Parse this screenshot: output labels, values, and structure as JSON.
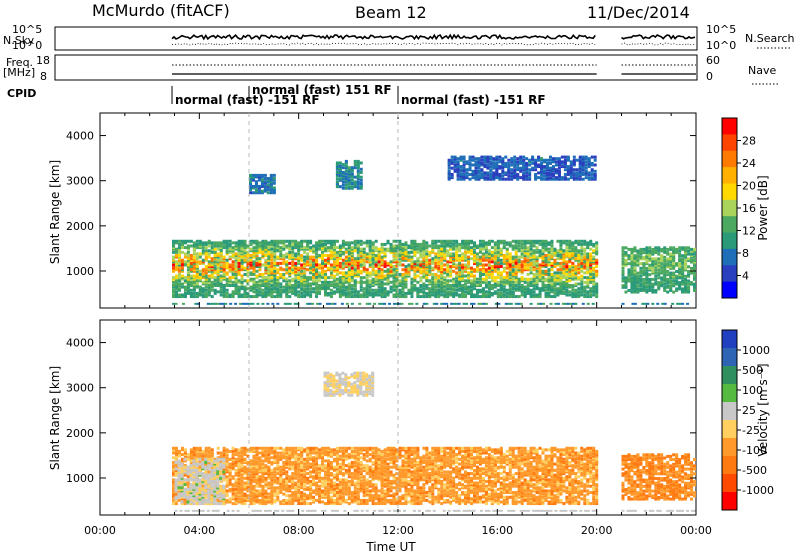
{
  "header": {
    "station": "McMurdo (fitACF)",
    "beam": "Beam 12",
    "date": "11/Dec/2014"
  },
  "strip": {
    "nsky_label": "N.Sky",
    "nsky_ticks": [
      "10^5",
      "10^0"
    ],
    "nsearch_label": "N.Search",
    "nsearch_ticks": [
      "10^5",
      "10^0"
    ],
    "freq_label": "Freq.",
    "freq_unit": "[MHz]",
    "freq_ticks": [
      "18",
      "8"
    ],
    "nave_label": "Nave",
    "nave_ticks": [
      "60",
      "0"
    ],
    "cpid_label": "CPID",
    "cpid_modes": [
      {
        "start": 2.9,
        "text": "normal (fast) -151 RF"
      },
      {
        "start": 6.0,
        "text": "normal (fast) 151 RF"
      },
      {
        "start": 12.0,
        "text": "normal (fast) -151 RF"
      }
    ]
  },
  "legend_power": {
    "label": "Power [dB]",
    "ticks": [
      "28",
      "24",
      "20",
      "16",
      "12",
      "8",
      "4"
    ],
    "colors": [
      "#ff0000",
      "#ff4400",
      "#ff7a00",
      "#ffb000",
      "#ffd800",
      "#a9d35a",
      "#4aa860",
      "#2a9a78",
      "#1f6fb8",
      "#2a3fbf",
      "#0000ff"
    ]
  },
  "legend_velocity": {
    "label": "Velocity [m s⁻¹]",
    "ticks": [
      "1000",
      "500",
      "100",
      "25",
      "-25",
      "-100",
      "-500",
      "-1000"
    ],
    "colors": [
      "#2040c0",
      "#2f64b4",
      "#2f8f5f",
      "#55bb40",
      "#c8c8c8",
      "#ffd060",
      "#ff9a2a",
      "#ff7a10",
      "#ff4a00",
      "#ff0000"
    ]
  },
  "chart_data": [
    {
      "type": "heatmap",
      "title": "",
      "xlabel": "",
      "ylabel": "Slant Range [km]",
      "xlim": [
        0,
        24
      ],
      "ylim": [
        180,
        4500
      ],
      "yticks": [
        1000,
        2000,
        3000,
        4000
      ],
      "colorbar_label": "Power [dB]",
      "colorbar_range": [
        0,
        30
      ],
      "data_gaps_ut": [
        [
          0,
          2.9
        ],
        [
          20.0,
          21.0
        ]
      ],
      "echo_regions": [
        {
          "ut_start": 2.9,
          "ut_end": 20.0,
          "range_km": [
            400,
            1650
          ],
          "typical_power_db": 14,
          "max_power_db": 28
        },
        {
          "ut_start": 6.0,
          "ut_end": 7.0,
          "range_km": [
            2700,
            3100
          ],
          "typical_power_db": 8
        },
        {
          "ut_start": 9.5,
          "ut_end": 10.5,
          "range_km": [
            2800,
            3400
          ],
          "typical_power_db": 10
        },
        {
          "ut_start": 14.0,
          "ut_end": 20.0,
          "range_km": [
            3000,
            3500
          ],
          "typical_power_db": 6
        },
        {
          "ut_start": 21.0,
          "ut_end": 24.0,
          "range_km": [
            500,
            1500
          ],
          "typical_power_db": 14
        }
      ]
    },
    {
      "type": "heatmap",
      "title": "",
      "xlabel": "Time UT",
      "ylabel": "Slant Range [km]",
      "xlim": [
        0,
        24
      ],
      "ylim": [
        180,
        4500
      ],
      "xticks": [
        "00:00",
        "04:00",
        "08:00",
        "12:00",
        "16:00",
        "20:00",
        "00:00"
      ],
      "yticks": [
        1000,
        2000,
        3000,
        4000
      ],
      "colorbar_label": "Velocity [m s⁻¹]",
      "colorbar_range": [
        -1000,
        1000
      ],
      "data_gaps_ut": [
        [
          0,
          2.9
        ],
        [
          20.0,
          21.0
        ]
      ],
      "echo_regions": [
        {
          "ut_start": 2.9,
          "ut_end": 20.0,
          "range_km": [
            400,
            1650
          ],
          "typical_velocity_ms": -300
        },
        {
          "ut_start": 3.0,
          "ut_end": 5.0,
          "range_km": [
            400,
            1400
          ],
          "typical_velocity_ms": 80
        },
        {
          "ut_start": 9.0,
          "ut_end": 11.0,
          "range_km": [
            2800,
            3300
          ],
          "typical_velocity_ms": 0
        },
        {
          "ut_start": 21.0,
          "ut_end": 24.0,
          "range_km": [
            500,
            1500
          ],
          "typical_velocity_ms": -400
        }
      ]
    }
  ]
}
